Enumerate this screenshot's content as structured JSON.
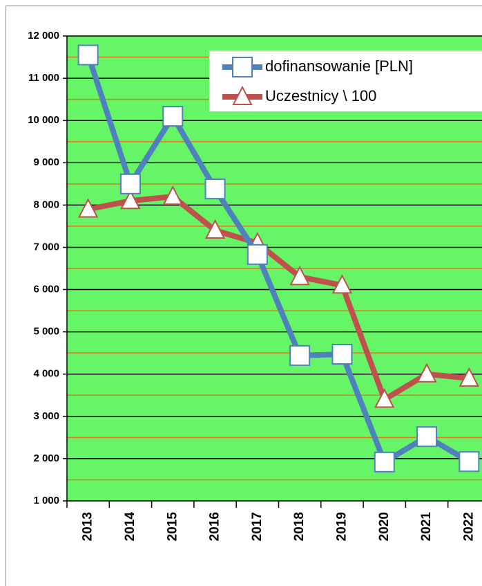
{
  "chart_data": {
    "type": "line",
    "categories": [
      "2013",
      "2014",
      "2015",
      "2016",
      "2017",
      "2018",
      "2019",
      "2020",
      "2021",
      "2022"
    ],
    "series": [
      {
        "name": "dofinansowanie [PLN]",
        "color": "#4f81bd",
        "marker": "square",
        "values": [
          11550,
          8500,
          10100,
          8380,
          6830,
          4440,
          4470,
          1920,
          2520,
          1930
        ]
      },
      {
        "name": "Uczestnicy \\ 100",
        "color": "#c0504d",
        "marker": "triangle",
        "values": [
          7900,
          8100,
          8200,
          7400,
          7100,
          6300,
          6100,
          3400,
          4000,
          3900
        ]
      }
    ],
    "ylim": [
      1000,
      12000
    ],
    "yticks": [
      {
        "value": 1000,
        "label": "1 000"
      },
      {
        "value": 2000,
        "label": "2 000"
      },
      {
        "value": 3000,
        "label": "3 000"
      },
      {
        "value": 4000,
        "label": "4 000"
      },
      {
        "value": 5000,
        "label": "5 000"
      },
      {
        "value": 6000,
        "label": "6 000"
      },
      {
        "value": 7000,
        "label": "7 000"
      },
      {
        "value": 8000,
        "label": "8 000"
      },
      {
        "value": 9000,
        "label": "9 000"
      },
      {
        "value": 10000,
        "label": "10 000"
      },
      {
        "value": 11000,
        "label": "11 000"
      },
      {
        "value": 12000,
        "label": "12 000"
      }
    ],
    "minor_yticks": [
      1500,
      2500,
      3500,
      4500,
      5500,
      6500,
      7500,
      8500,
      9500,
      10500,
      11500
    ],
    "grid": true,
    "plot_background": "#66f566",
    "grid_color": "#000000",
    "minor_grid_color": "#e07a1a",
    "legend": "upper right"
  }
}
